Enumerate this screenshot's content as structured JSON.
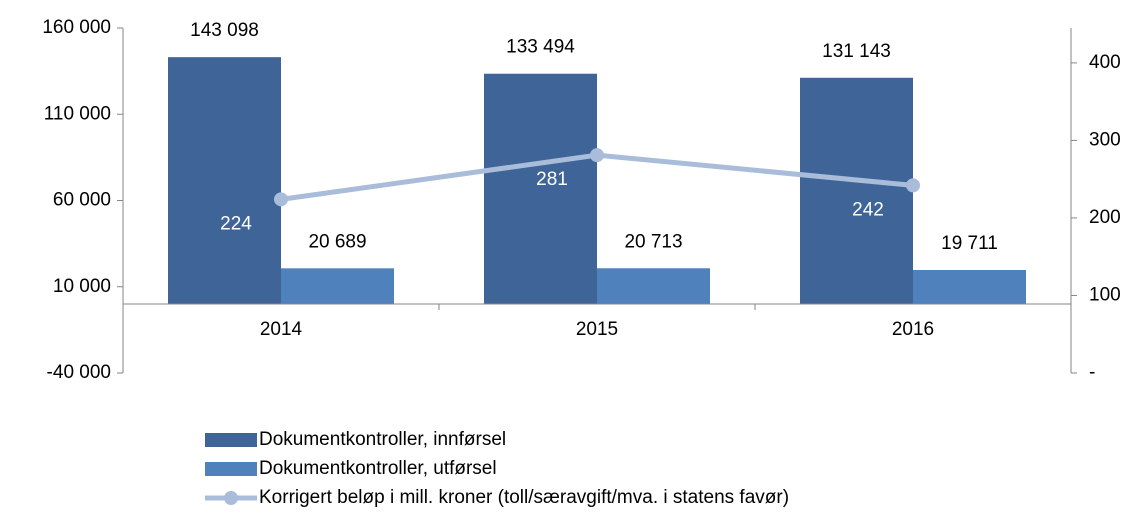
{
  "chart_data": {
    "type": "bar",
    "categories": [
      "2014",
      "2015",
      "2016"
    ],
    "series": [
      {
        "name": "Dokumentkontroller, innførsel",
        "color": "#3f6598",
        "values": [
          143098,
          133494,
          131143
        ],
        "value_labels": [
          "143 098",
          "133 494",
          "131 143"
        ]
      },
      {
        "name": "Dokumentkontroller, utførsel",
        "color": "#4f81bd",
        "values": [
          20689,
          20713,
          19711
        ],
        "value_labels": [
          "20 689",
          "20 713",
          "19 711"
        ]
      },
      {
        "name": "Korrigert beløp i mill. kroner (toll/særavgift/mva. i statens favør)",
        "color": "#a9bcd9",
        "type": "line",
        "axis": "y2",
        "values": [
          224,
          281,
          242
        ]
      }
    ],
    "ylim": [
      -40000,
      160000
    ],
    "yticks": [
      {
        "value": -40000,
        "label": "-40 000"
      },
      {
        "value": 10000,
        "label": "10 000"
      },
      {
        "value": 60000,
        "label": "60 000"
      },
      {
        "value": 110000,
        "label": "110 000"
      },
      {
        "value": 160000,
        "label": "160 000"
      }
    ],
    "y2lim": [
      0,
      445
    ],
    "y2ticks": [
      {
        "value": 0,
        "label": "-"
      },
      100,
      200,
      300,
      400
    ],
    "legend": "bottom"
  }
}
